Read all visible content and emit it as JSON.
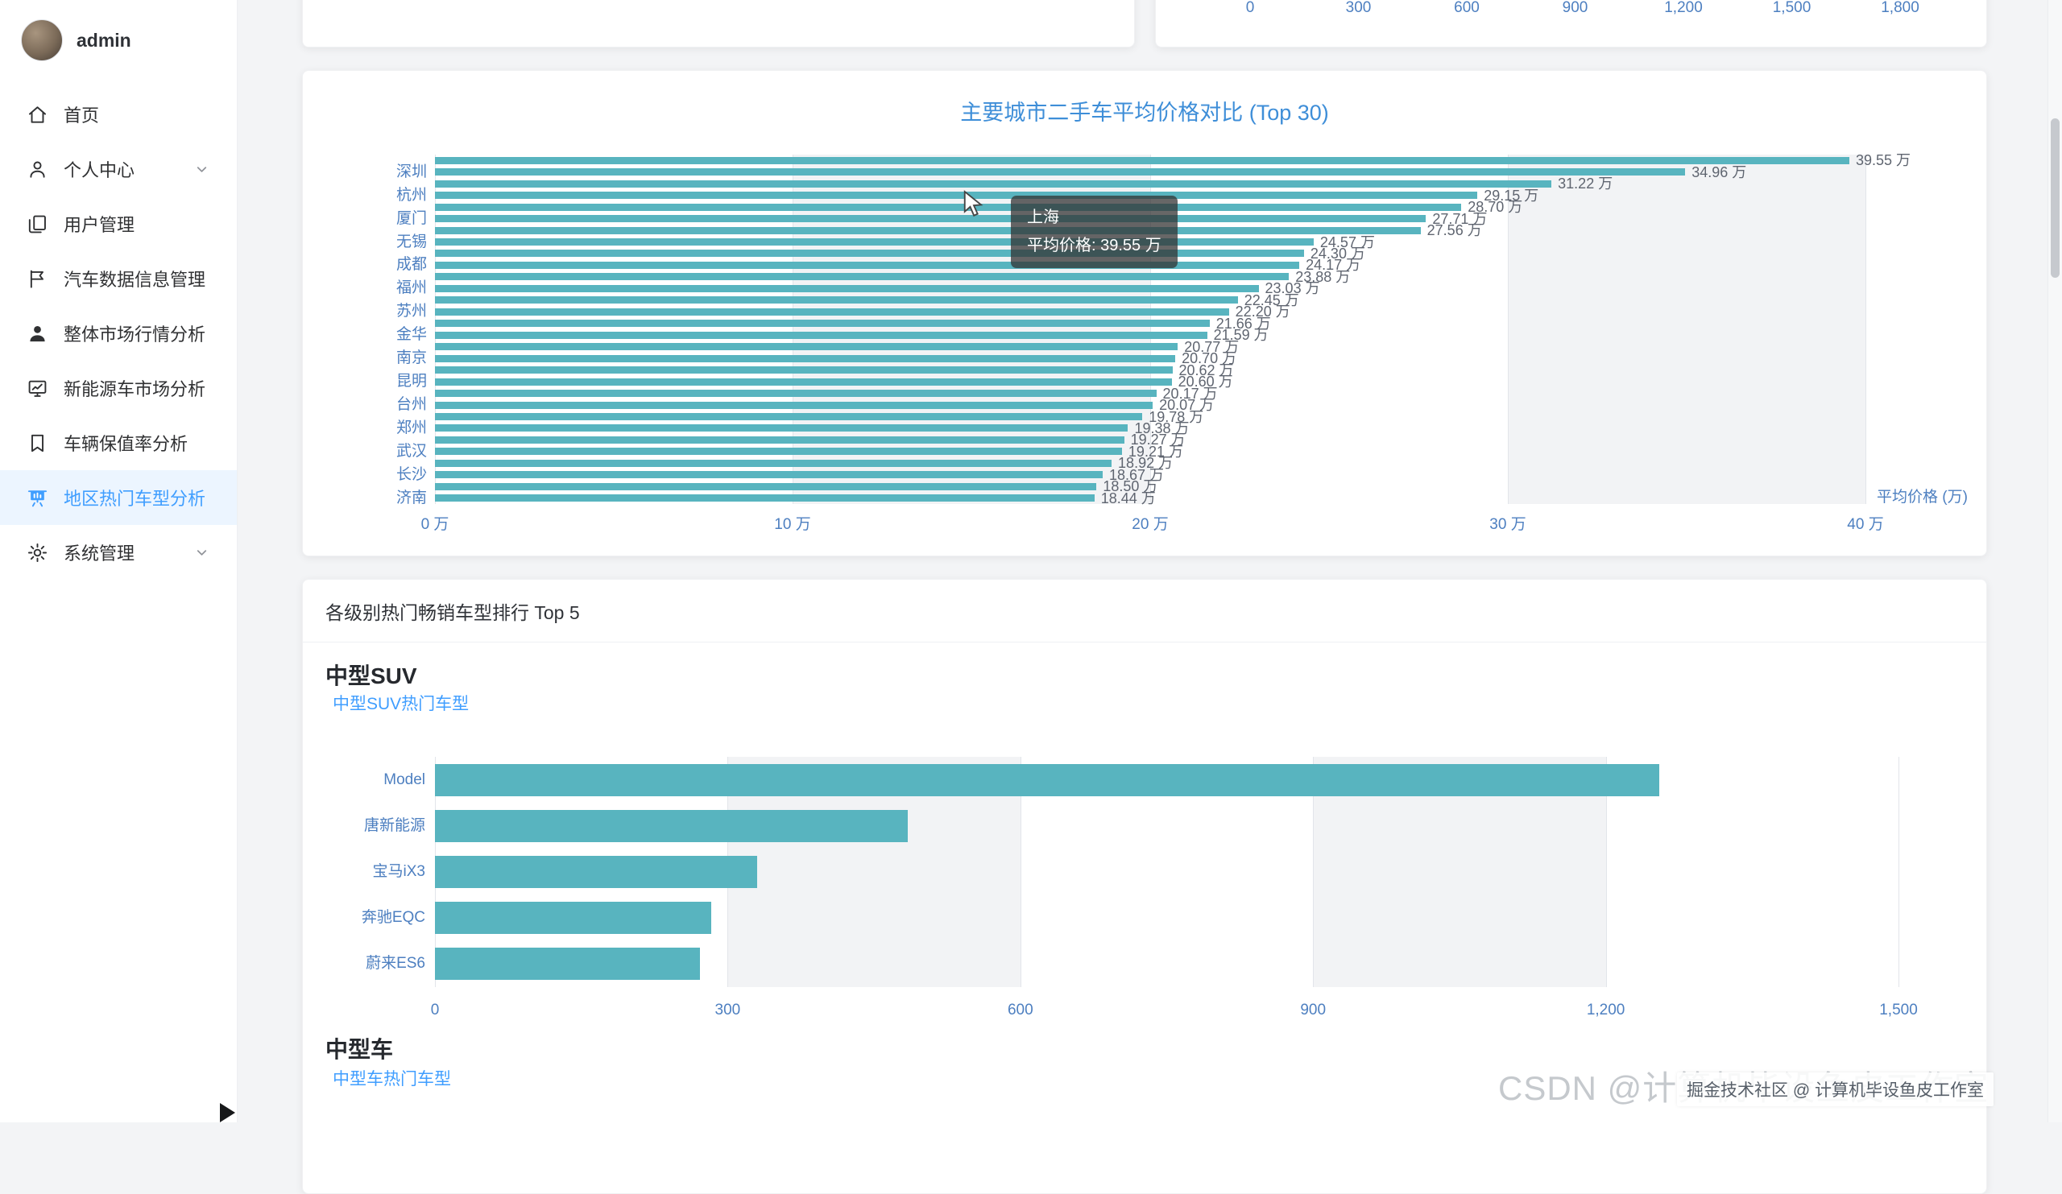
{
  "colors": {
    "accent": "#409EFF",
    "title_blue": "#3e8ed8",
    "bar_color": "#58b4bf",
    "axis_label": "#4d7fc0",
    "value_label": "#5f6570",
    "sidebar_active_bg": "#ecf5ff",
    "tooltip_bg": "rgba(50,50,50,0.74)"
  },
  "sidebar": {
    "user": {
      "name": "admin"
    },
    "items": [
      {
        "label": "首页",
        "icon": "home-icon",
        "active": false,
        "chevron": false
      },
      {
        "label": "个人中心",
        "icon": "user-icon",
        "active": false,
        "chevron": true
      },
      {
        "label": "用户管理",
        "icon": "copy-document-icon",
        "active": false,
        "chevron": false
      },
      {
        "label": "汽车数据信息管理",
        "icon": "flag-icon",
        "active": false,
        "chevron": false
      },
      {
        "label": "整体市场行情分析",
        "icon": "user-solid-icon",
        "active": false,
        "chevron": false
      },
      {
        "label": "新能源车市场分析",
        "icon": "data-line-icon",
        "active": false,
        "chevron": false
      },
      {
        "label": "车辆保值率分析",
        "icon": "collection-tag-icon",
        "active": false,
        "chevron": false
      },
      {
        "label": "地区热门车型分析",
        "icon": "data-board-icon",
        "active": true,
        "chevron": false
      },
      {
        "label": "系统管理",
        "icon": "setting-icon",
        "active": false,
        "chevron": true
      }
    ]
  },
  "tooltip": {
    "name": "上海",
    "value_line": "平均价格: 39.55 万"
  },
  "ranking": {
    "header": "各级别热门畅销车型排行 Top 5",
    "sections": [
      {
        "title": "中型SUV",
        "link": "中型SUV热门车型"
      },
      {
        "title": "中型车",
        "link": "中型车热门车型"
      }
    ]
  },
  "watermarks": {
    "csdn": "CSDN @计算机毕设鱼皮工作室",
    "juejin": "掘金技术社区 @ 计算机毕设鱼皮工作室"
  },
  "chart_data": [
    {
      "type": "bar",
      "orientation": "horizontal",
      "title": "主要城市二手车平均价格对比 (Top 30)",
      "note": "30 bars; every other y-axis label shown; topmost bar is 上海 (see tooltip)",
      "visible_y_labels": [
        "深圳",
        "杭州",
        "厦门",
        "无锡",
        "成都",
        "福州",
        "苏州",
        "金华",
        "南京",
        "昆明",
        "台州",
        "郑州",
        "武汉",
        "长沙",
        "济南"
      ],
      "values": [
        39.55,
        34.96,
        31.22,
        29.15,
        28.7,
        27.71,
        27.56,
        24.57,
        24.3,
        24.17,
        23.88,
        23.03,
        22.45,
        22.2,
        21.66,
        21.59,
        20.77,
        20.7,
        20.62,
        20.6,
        20.17,
        20.07,
        19.78,
        19.38,
        19.27,
        19.21,
        18.92,
        18.67,
        18.5,
        18.44
      ],
      "value_label_suffix": " 万",
      "x_ticks": [
        "0 万",
        "10 万",
        "20 万",
        "30 万",
        "40 万"
      ],
      "xlim": [
        0,
        40
      ],
      "x_axis_name": "平均价格 (万)",
      "grid": true,
      "legend": "none"
    },
    {
      "type": "bar",
      "orientation": "horizontal",
      "title": "中型SUV热门车型",
      "categories": [
        "Model",
        "唐新能源",
        "宝马iX3",
        "奔驰EQC",
        "蔚来ES6"
      ],
      "values": [
        1255,
        485,
        330,
        283,
        272
      ],
      "x_ticks": [
        "0",
        "300",
        "600",
        "900",
        "1,200",
        "1,500"
      ],
      "xlim": [
        0,
        1500
      ],
      "grid": true,
      "legend": "none"
    },
    {
      "type": "bar-axis-partial",
      "note": "bottom axis of a chart cut off at top of viewport",
      "x_ticks": [
        "0",
        "300",
        "600",
        "900",
        "1,200",
        "1,500",
        "1,800"
      ]
    }
  ]
}
